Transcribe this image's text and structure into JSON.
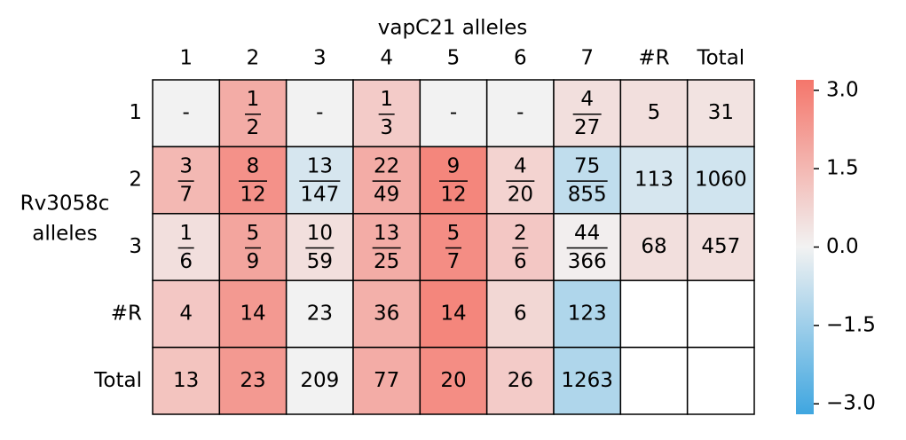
{
  "chart_data": {
    "type": "heatmap",
    "title": "vapC21 alleles",
    "ylabel": [
      "Rv3058c",
      "alleles"
    ],
    "x": [
      "1",
      "2",
      "3",
      "4",
      "5",
      "6",
      "7",
      "#R",
      "Total"
    ],
    "y": [
      "1",
      "2",
      "3",
      "#R",
      "Total"
    ],
    "labels": [
      [
        "-",
        [
          "1",
          "2"
        ],
        "-",
        [
          "1",
          "3"
        ],
        "-",
        "-",
        [
          "4",
          "27"
        ],
        "5",
        "31"
      ],
      [
        [
          "3",
          "7"
        ],
        [
          "8",
          "12"
        ],
        [
          "13",
          "147"
        ],
        [
          "22",
          "49"
        ],
        [
          "9",
          "12"
        ],
        [
          "4",
          "20"
        ],
        [
          "75",
          "855"
        ],
        "113",
        "1060"
      ],
      [
        [
          "1",
          "6"
        ],
        [
          "5",
          "9"
        ],
        [
          "10",
          "59"
        ],
        [
          "13",
          "25"
        ],
        [
          "5",
          "7"
        ],
        [
          "2",
          "6"
        ],
        [
          "44",
          "366"
        ],
        "68",
        "457"
      ],
      [
        "4",
        "14",
        "23",
        "36",
        "14",
        "6",
        "123",
        null,
        null
      ],
      [
        "13",
        "23",
        "209",
        "77",
        "20",
        "26",
        "1263",
        null,
        null
      ]
    ],
    "values": [
      [
        0.0,
        1.8,
        0.0,
        1.0,
        0.0,
        0.0,
        0.5,
        0.5,
        0.4
      ],
      [
        1.5,
        2.5,
        -0.5,
        1.8,
        2.8,
        0.8,
        -0.9,
        -0.5,
        -0.6
      ],
      [
        0.5,
        2.0,
        0.5,
        1.8,
        2.6,
        1.1,
        0.1,
        0.5,
        0.5
      ],
      [
        1.1,
        2.3,
        0.0,
        1.7,
        2.8,
        0.7,
        -1.2,
        null,
        null
      ],
      [
        1.2,
        2.3,
        0.0,
        1.8,
        2.6,
        1.0,
        -1.2,
        null,
        null
      ]
    ],
    "colormap": [
      "#3fa6e0",
      "#f2f2f2",
      "#f4766b"
    ],
    "clim": [
      -3.2,
      3.2
    ],
    "cticks": [
      {
        "value": 3.0,
        "label": "3.0"
      },
      {
        "value": 1.5,
        "label": "1.5"
      },
      {
        "value": 0.0,
        "label": "0.0"
      },
      {
        "value": -1.5,
        "label": "−1.5"
      },
      {
        "value": -3.0,
        "label": "−3.0"
      }
    ]
  }
}
